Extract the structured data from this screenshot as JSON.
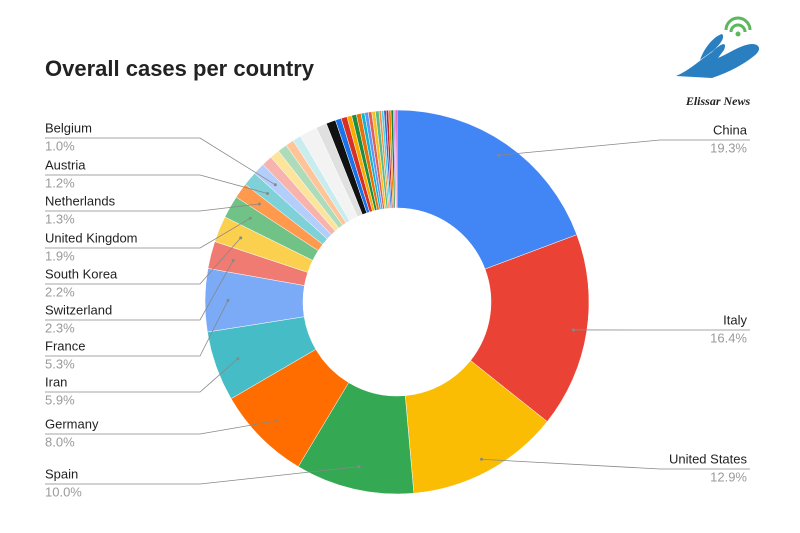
{
  "logo": "Elissar News",
  "chart_data": {
    "type": "pie",
    "title": "Overall cases per country",
    "categories": [
      "China",
      "Italy",
      "United States",
      "Spain",
      "Germany",
      "Iran",
      "France",
      "Switzerland",
      "South Korea",
      "United Kingdom",
      "Netherlands",
      "Austria",
      "Belgium",
      null,
      null,
      null,
      null,
      null,
      null,
      null,
      null,
      null,
      null,
      null,
      null,
      null,
      null,
      null,
      null,
      null,
      null,
      null,
      null,
      null,
      null,
      null,
      null,
      null,
      null,
      null
    ],
    "values": [
      19.3,
      16.4,
      12.9,
      10.0,
      8.0,
      5.9,
      5.3,
      2.3,
      2.2,
      1.9,
      1.3,
      1.2,
      1.0,
      0.9,
      0.8,
      0.8,
      0.7,
      0.7,
      1.5,
      0.9,
      0.8,
      0.5,
      0.5,
      0.4,
      0.4,
      0.4,
      0.3,
      0.3,
      0.3,
      0.3,
      0.3,
      0.2,
      0.2,
      0.2,
      0.2,
      0.2,
      0.2,
      0.1,
      0.1,
      0.1
    ],
    "value_labels": [
      "19.3%",
      "16.4%",
      "12.9%",
      "10.0%",
      "8.0%",
      "5.9%",
      "5.3%",
      "2.3%",
      "2.2%",
      "1.9%",
      "1.3%",
      "1.2%",
      "1.0%",
      null,
      null,
      null,
      null,
      null,
      null,
      null,
      null,
      null,
      null,
      null,
      null,
      null,
      null,
      null,
      null,
      null,
      null,
      null,
      null,
      null,
      null,
      null,
      null,
      null,
      null,
      null
    ],
    "colors": [
      "#4285f4",
      "#ea4335",
      "#fbbc04",
      "#34a853",
      "#ff6d01",
      "#46bdc6",
      "#7baaf7",
      "#f07b72",
      "#fcd04f",
      "#71c287",
      "#ff994d",
      "#7ed1d7",
      "#b3cefb",
      "#f7b4ae",
      "#fde49b",
      "#aedcba",
      "#ffc599",
      "#c9ecef",
      "#f3f3f3",
      "#e0e0e0",
      "#111111",
      "#1a73e8",
      "#d93025",
      "#f9ab00",
      "#1e8e3e",
      "#e8710a",
      "#12b5cb",
      "#5e97f6",
      "#e06055",
      "#f6c026",
      "#57bb8a",
      "#ff8a3d",
      "#4dd0e1",
      "#3367d6",
      "#c5221f",
      "#ea8600",
      "#188038",
      "#9334e6",
      "#a142f4",
      "#e52592"
    ],
    "donut": true
  }
}
